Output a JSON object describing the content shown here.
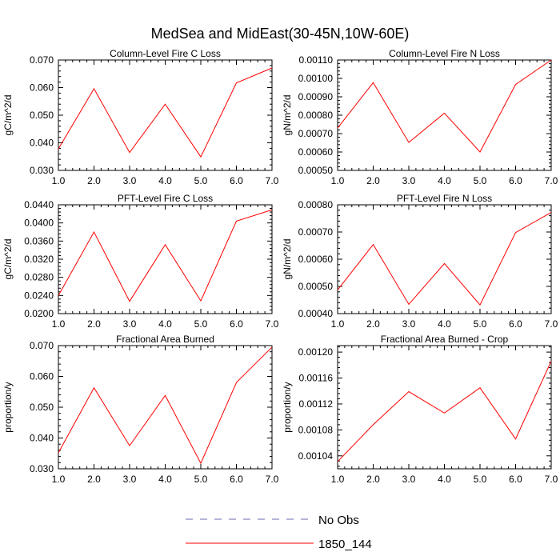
{
  "title": "MedSea and MidEast(30-45N,10W-60E)",
  "colors": {
    "series": "#ff0000",
    "no_obs": "#6b6bb0",
    "axis": "#000000"
  },
  "legend": {
    "placement": "bottom-center",
    "items": [
      {
        "label": "No Obs",
        "style": "dashed",
        "color": "#6b6bb0"
      },
      {
        "label": "1850_144",
        "style": "solid",
        "color": "#ff0000"
      }
    ]
  },
  "chart_data": [
    {
      "type": "line",
      "title": "Column-Level Fire C Loss",
      "ylabel": "gC/m^2/d",
      "xlim": [
        1,
        7
      ],
      "ylim": [
        0.03,
        0.07
      ],
      "x_ticks": [
        "1.0",
        "2.0",
        "3.0",
        "4.0",
        "5.0",
        "6.0",
        "7.0"
      ],
      "y_ticks": [
        {
          "value": 0.03,
          "label": "0.030"
        },
        {
          "value": 0.04,
          "label": "0.040"
        },
        {
          "value": 0.05,
          "label": "0.050"
        },
        {
          "value": 0.06,
          "label": "0.060"
        },
        {
          "value": 0.07,
          "label": "0.070"
        }
      ],
      "minor_ticks": 4,
      "x": [
        1,
        2,
        3,
        4,
        5,
        6,
        7
      ],
      "series": [
        {
          "name": "1850_144",
          "values": [
            0.0378,
            0.0596,
            0.0365,
            0.054,
            0.0349,
            0.0617,
            0.0671
          ]
        }
      ]
    },
    {
      "type": "line",
      "title": "Column-Level Fire N Loss",
      "ylabel": "gN/m^2/d",
      "xlim": [
        1,
        7
      ],
      "ylim": [
        0.0005,
        0.0011
      ],
      "x_ticks": [
        "1.0",
        "2.0",
        "3.0",
        "4.0",
        "5.0",
        "6.0",
        "7.0"
      ],
      "y_ticks": [
        {
          "value": 0.0005,
          "label": "0.00050"
        },
        {
          "value": 0.0006,
          "label": "0.00060"
        },
        {
          "value": 0.0007,
          "label": "0.00070"
        },
        {
          "value": 0.0008,
          "label": "0.00080"
        },
        {
          "value": 0.0009,
          "label": "0.00090"
        },
        {
          "value": 0.001,
          "label": "0.00100"
        },
        {
          "value": 0.0011,
          "label": "0.00110"
        }
      ],
      "minor_ticks": 4,
      "x": [
        1,
        2,
        3,
        4,
        5,
        6,
        7
      ],
      "series": [
        {
          "name": "1850_144",
          "values": [
            0.00073,
            0.000977,
            0.000652,
            0.000811,
            0.0006,
            0.000967,
            0.0011
          ]
        }
      ]
    },
    {
      "type": "line",
      "title": "PFT-Level Fire C Loss",
      "ylabel": "gC/m^2/d",
      "xlim": [
        1,
        7
      ],
      "ylim": [
        0.02,
        0.044
      ],
      "x_ticks": [
        "1.0",
        "2.0",
        "3.0",
        "4.0",
        "5.0",
        "6.0",
        "7.0"
      ],
      "y_ticks": [
        {
          "value": 0.02,
          "label": "0.0200"
        },
        {
          "value": 0.024,
          "label": "0.0240"
        },
        {
          "value": 0.028,
          "label": "0.0280"
        },
        {
          "value": 0.032,
          "label": "0.0320"
        },
        {
          "value": 0.036,
          "label": "0.0360"
        },
        {
          "value": 0.04,
          "label": "0.0400"
        },
        {
          "value": 0.044,
          "label": "0.0440"
        }
      ],
      "minor_ticks": 4,
      "x": [
        1,
        2,
        3,
        4,
        5,
        6,
        7
      ],
      "series": [
        {
          "name": "1850_144",
          "values": [
            0.024,
            0.038,
            0.0227,
            0.0352,
            0.0228,
            0.0404,
            0.0429
          ]
        }
      ]
    },
    {
      "type": "line",
      "title": "PFT-Level Fire N Loss",
      "ylabel": "gN/m^2/d",
      "xlim": [
        1,
        7
      ],
      "ylim": [
        0.0004,
        0.0008
      ],
      "x_ticks": [
        "1.0",
        "2.0",
        "3.0",
        "4.0",
        "5.0",
        "6.0",
        "7.0"
      ],
      "y_ticks": [
        {
          "value": 0.0004,
          "label": "0.00040"
        },
        {
          "value": 0.0005,
          "label": "0.00050"
        },
        {
          "value": 0.0006,
          "label": "0.00060"
        },
        {
          "value": 0.0007,
          "label": "0.00070"
        },
        {
          "value": 0.0008,
          "label": "0.00080"
        }
      ],
      "minor_ticks": 4,
      "x": [
        1,
        2,
        3,
        4,
        5,
        6,
        7
      ],
      "series": [
        {
          "name": "1850_144",
          "values": [
            0.000487,
            0.000654,
            0.000434,
            0.000584,
            0.000432,
            0.000698,
            0.000772
          ]
        }
      ]
    },
    {
      "type": "line",
      "title": "Fractional Area Burned",
      "ylabel": "proportion/y",
      "xlim": [
        1,
        7
      ],
      "ylim": [
        0.03,
        0.07
      ],
      "x_ticks": [
        "1.0",
        "2.0",
        "3.0",
        "4.0",
        "5.0",
        "6.0",
        "7.0"
      ],
      "y_ticks": [
        {
          "value": 0.03,
          "label": "0.030"
        },
        {
          "value": 0.04,
          "label": "0.040"
        },
        {
          "value": 0.05,
          "label": "0.050"
        },
        {
          "value": 0.06,
          "label": "0.060"
        },
        {
          "value": 0.07,
          "label": "0.070"
        }
      ],
      "minor_ticks": 4,
      "x": [
        1,
        2,
        3,
        4,
        5,
        6,
        7
      ],
      "series": [
        {
          "name": "1850_144",
          "values": [
            0.0352,
            0.0563,
            0.0375,
            0.0538,
            0.0318,
            0.058,
            0.0695
          ]
        }
      ]
    },
    {
      "type": "line",
      "title": "Fractional Area Burned - Crop",
      "ylabel": "proportion/y",
      "xlim": [
        1,
        7
      ],
      "ylim": [
        0.00102,
        0.00121
      ],
      "x_ticks": [
        "1.0",
        "2.0",
        "3.0",
        "4.0",
        "5.0",
        "6.0",
        "7.0"
      ],
      "y_ticks": [
        {
          "value": 0.00104,
          "label": "0.00104"
        },
        {
          "value": 0.00108,
          "label": "0.00108"
        },
        {
          "value": 0.00112,
          "label": "0.00112"
        },
        {
          "value": 0.00116,
          "label": "0.00116"
        },
        {
          "value": 0.0012,
          "label": "0.00120"
        }
      ],
      "minor_ticks": 4,
      "x": [
        1,
        2,
        3,
        4,
        5,
        6,
        7
      ],
      "series": [
        {
          "name": "1850_144",
          "values": [
            0.001031,
            0.001088,
            0.001139,
            0.001106,
            0.001145,
            0.001066,
            0.001186
          ]
        }
      ]
    }
  ]
}
